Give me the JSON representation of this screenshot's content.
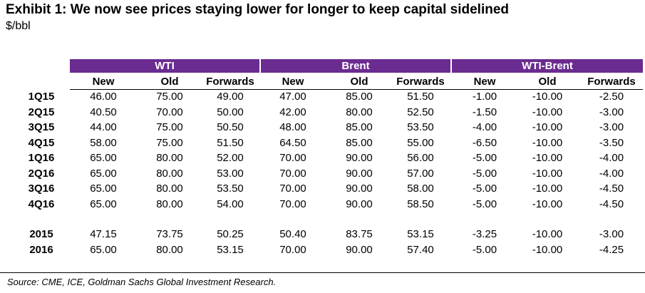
{
  "exhibit": {
    "title": "Exhibit 1: We now see prices staying lower for longer to keep capital sidelined",
    "unit": "$/bbl",
    "source": "Source: CME, ICE, Goldman Sachs Global Investment Research."
  },
  "chart_data": {
    "type": "table",
    "title": "Exhibit 1: We now see prices staying lower for longer to keep capital sidelined",
    "unit": "$/bbl",
    "groups": [
      "WTI",
      "Brent",
      "WTI-Brent"
    ],
    "columns": [
      "New",
      "Old",
      "Forwards",
      "New",
      "Old",
      "Forwards",
      "New",
      "Old",
      "Forwards"
    ],
    "rows": [
      {
        "label": "1Q15",
        "values": [
          "46.00",
          "75.00",
          "49.00",
          "47.00",
          "85.00",
          "51.50",
          "-1.00",
          "-10.00",
          "-2.50"
        ]
      },
      {
        "label": "2Q15",
        "values": [
          "40.50",
          "70.00",
          "50.00",
          "42.00",
          "80.00",
          "52.50",
          "-1.50",
          "-10.00",
          "-3.00"
        ]
      },
      {
        "label": "3Q15",
        "values": [
          "44.00",
          "75.00",
          "50.50",
          "48.00",
          "85.00",
          "53.50",
          "-4.00",
          "-10.00",
          "-3.00"
        ]
      },
      {
        "label": "4Q15",
        "values": [
          "58.00",
          "75.00",
          "51.50",
          "64.50",
          "85.00",
          "55.00",
          "-6.50",
          "-10.00",
          "-3.50"
        ]
      },
      {
        "label": "1Q16",
        "values": [
          "65.00",
          "80.00",
          "52.00",
          "70.00",
          "90.00",
          "56.00",
          "-5.00",
          "-10.00",
          "-4.00"
        ]
      },
      {
        "label": "2Q16",
        "values": [
          "65.00",
          "80.00",
          "53.00",
          "70.00",
          "90.00",
          "57.00",
          "-5.00",
          "-10.00",
          "-4.00"
        ]
      },
      {
        "label": "3Q16",
        "values": [
          "65.00",
          "80.00",
          "53.50",
          "70.00",
          "90.00",
          "58.00",
          "-5.00",
          "-10.00",
          "-4.50"
        ]
      },
      {
        "label": "4Q16",
        "values": [
          "65.00",
          "80.00",
          "54.00",
          "70.00",
          "90.00",
          "58.50",
          "-5.00",
          "-10.00",
          "-4.50"
        ]
      },
      {
        "label": "2015",
        "values": [
          "47.15",
          "73.75",
          "50.25",
          "50.40",
          "83.75",
          "53.15",
          "-3.25",
          "-10.00",
          "-3.00"
        ]
      },
      {
        "label": "2016",
        "values": [
          "65.00",
          "80.00",
          "53.15",
          "70.00",
          "90.00",
          "57.40",
          "-5.00",
          "-10.00",
          "-4.25"
        ]
      }
    ]
  },
  "colors": {
    "header_fill": "#6b2c91",
    "header_text": "#ffffff"
  }
}
